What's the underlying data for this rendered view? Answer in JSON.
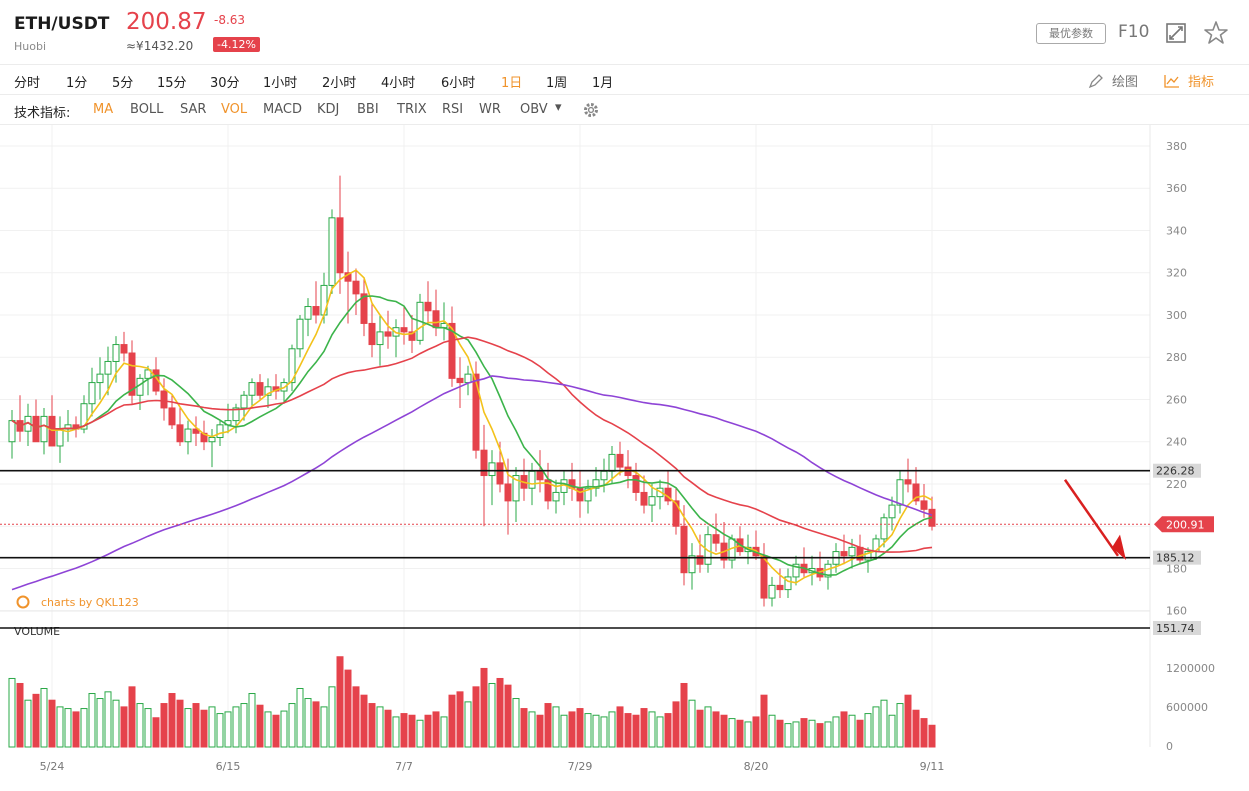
{
  "header": {
    "pair": "ETH/USDT",
    "exchange": "Huobi",
    "price": "200.87",
    "cny_price": "≈¥1432.20",
    "change": "-8.63",
    "change_pct": "-4.12%",
    "param_button": "最优参数",
    "f10": "F10"
  },
  "colors": {
    "up": "#2aa847",
    "down": "#e5424b",
    "accent": "#f0932b"
  },
  "timeframes": [
    {
      "label": "分时",
      "active": false
    },
    {
      "label": "1分",
      "active": false
    },
    {
      "label": "5分",
      "active": false
    },
    {
      "label": "15分",
      "active": false
    },
    {
      "label": "30分",
      "active": false
    },
    {
      "label": "1小时",
      "active": false
    },
    {
      "label": "2小时",
      "active": false
    },
    {
      "label": "4小时",
      "active": false
    },
    {
      "label": "6小时",
      "active": false
    },
    {
      "label": "1日",
      "active": true
    },
    {
      "label": "1周",
      "active": false
    },
    {
      "label": "1月",
      "active": false
    }
  ],
  "tools": {
    "draw": "绘图",
    "indicator": "指标"
  },
  "indicators_label": "技术指标:",
  "indicators": [
    {
      "label": "MA",
      "active": true
    },
    {
      "label": "BOLL",
      "active": false
    },
    {
      "label": "SAR",
      "active": false
    },
    {
      "label": "VOL",
      "active": true
    },
    {
      "label": "MACD",
      "active": false
    },
    {
      "label": "KDJ",
      "active": false
    },
    {
      "label": "BBI",
      "active": false
    },
    {
      "label": "TRIX",
      "active": false
    },
    {
      "label": "RSI",
      "active": false
    },
    {
      "label": "WR",
      "active": false
    },
    {
      "label": "OBV",
      "active": false
    }
  ],
  "icons": {
    "expand": "expand-icon",
    "favorite": "star-icon",
    "settings": "gear-icon",
    "draw": "pencil-icon",
    "indicator": "line-chart-icon"
  },
  "chart_data": {
    "type": "candlestick",
    "watermark": "charts by QKL123",
    "price_ticks": [
      "380",
      "360",
      "340",
      "320",
      "300",
      "280",
      "260",
      "240",
      "220",
      "200",
      "180",
      "160"
    ],
    "volume_title": "VOLUME",
    "volume_ticks": [
      "1200000",
      "600000",
      "0"
    ],
    "x_ticks": [
      {
        "label": "5/24",
        "index": 5
      },
      {
        "label": "6/15",
        "index": 27
      },
      {
        "label": "7/7",
        "index": 49
      },
      {
        "label": "7/29",
        "index": 71
      },
      {
        "label": "8/20",
        "index": 93
      },
      {
        "label": "9/11",
        "index": 115
      }
    ],
    "levels": [
      {
        "value": 226.28,
        "label": "226.28"
      },
      {
        "value": 185.12,
        "label": "185.12"
      },
      {
        "value": 151.74,
        "label": "151.74"
      }
    ],
    "last_price": {
      "value": 200.91,
      "label": "200.91"
    },
    "ohlc_v": [
      [
        240,
        255,
        232,
        250,
        820000
      ],
      [
        250,
        262,
        240,
        245,
        760000
      ],
      [
        245,
        258,
        238,
        252,
        560000
      ],
      [
        252,
        260,
        240,
        240,
        630000
      ],
      [
        240,
        256,
        234,
        252,
        700000
      ],
      [
        252,
        262,
        244,
        238,
        560000
      ],
      [
        238,
        252,
        230,
        246,
        480000
      ],
      [
        246,
        255,
        240,
        248,
        460000
      ],
      [
        248,
        252,
        242,
        246,
        420000
      ],
      [
        246,
        262,
        244,
        258,
        460000
      ],
      [
        258,
        275,
        252,
        268,
        640000
      ],
      [
        268,
        280,
        260,
        272,
        580000
      ],
      [
        272,
        285,
        262,
        278,
        660000
      ],
      [
        278,
        290,
        268,
        286,
        560000
      ],
      [
        286,
        292,
        278,
        282,
        480000
      ],
      [
        282,
        288,
        258,
        262,
        720000
      ],
      [
        262,
        272,
        255,
        270,
        520000
      ],
      [
        270,
        276,
        262,
        274,
        460000
      ],
      [
        274,
        280,
        262,
        264,
        350000
      ],
      [
        264,
        270,
        250,
        256,
        520000
      ],
      [
        256,
        262,
        246,
        248,
        640000
      ],
      [
        248,
        256,
        238,
        240,
        560000
      ],
      [
        240,
        250,
        234,
        246,
        460000
      ],
      [
        246,
        252,
        238,
        244,
        520000
      ],
      [
        244,
        250,
        236,
        240,
        440000
      ],
      [
        240,
        246,
        228,
        242,
        480000
      ],
      [
        242,
        250,
        238,
        248,
        400000
      ],
      [
        248,
        258,
        244,
        250,
        420000
      ],
      [
        250,
        258,
        244,
        256,
        480000
      ],
      [
        256,
        264,
        250,
        262,
        520000
      ],
      [
        262,
        270,
        256,
        268,
        640000
      ],
      [
        268,
        272,
        260,
        262,
        500000
      ],
      [
        262,
        270,
        256,
        266,
        420000
      ],
      [
        266,
        272,
        260,
        264,
        380000
      ],
      [
        264,
        270,
        258,
        268,
        430000
      ],
      [
        268,
        286,
        264,
        284,
        520000
      ],
      [
        284,
        300,
        280,
        298,
        700000
      ],
      [
        298,
        308,
        290,
        304,
        580000
      ],
      [
        304,
        316,
        296,
        300,
        540000
      ],
      [
        300,
        320,
        296,
        314,
        480000
      ],
      [
        314,
        350,
        310,
        346,
        720000
      ],
      [
        346,
        366,
        310,
        320,
        1080000
      ],
      [
        320,
        330,
        296,
        316,
        920000
      ],
      [
        316,
        322,
        300,
        310,
        720000
      ],
      [
        310,
        318,
        290,
        296,
        620000
      ],
      [
        296,
        306,
        280,
        286,
        520000
      ],
      [
        286,
        300,
        276,
        292,
        480000
      ],
      [
        292,
        302,
        284,
        290,
        440000
      ],
      [
        290,
        298,
        280,
        294,
        360000
      ],
      [
        294,
        304,
        286,
        292,
        400000
      ],
      [
        292,
        300,
        282,
        288,
        380000
      ],
      [
        288,
        310,
        286,
        306,
        320000
      ],
      [
        306,
        316,
        296,
        302,
        380000
      ],
      [
        302,
        312,
        290,
        294,
        420000
      ],
      [
        294,
        306,
        288,
        296,
        360000
      ],
      [
        296,
        304,
        266,
        270,
        620000
      ],
      [
        270,
        280,
        256,
        268,
        660000
      ],
      [
        268,
        276,
        262,
        272,
        540000
      ],
      [
        272,
        278,
        232,
        236,
        720000
      ],
      [
        236,
        248,
        200,
        224,
        940000
      ],
      [
        224,
        236,
        210,
        230,
        760000
      ],
      [
        230,
        240,
        216,
        220,
        820000
      ],
      [
        220,
        232,
        196,
        212,
        740000
      ],
      [
        212,
        228,
        202,
        224,
        580000
      ],
      [
        224,
        232,
        212,
        218,
        460000
      ],
      [
        218,
        230,
        210,
        226,
        420000
      ],
      [
        226,
        236,
        216,
        222,
        380000
      ],
      [
        222,
        230,
        208,
        212,
        520000
      ],
      [
        212,
        222,
        206,
        216,
        480000
      ],
      [
        216,
        226,
        210,
        222,
        380000
      ],
      [
        222,
        230,
        212,
        218,
        420000
      ],
      [
        218,
        226,
        204,
        212,
        460000
      ],
      [
        212,
        222,
        206,
        218,
        400000
      ],
      [
        218,
        228,
        214,
        222,
        380000
      ],
      [
        222,
        232,
        216,
        226,
        360000
      ],
      [
        226,
        238,
        220,
        234,
        420000
      ],
      [
        234,
        240,
        224,
        228,
        480000
      ],
      [
        228,
        236,
        218,
        224,
        400000
      ],
      [
        224,
        230,
        212,
        216,
        380000
      ],
      [
        216,
        224,
        206,
        210,
        460000
      ],
      [
        210,
        220,
        202,
        214,
        420000
      ],
      [
        214,
        222,
        208,
        218,
        360000
      ],
      [
        218,
        226,
        210,
        212,
        400000
      ],
      [
        212,
        218,
        196,
        200,
        540000
      ],
      [
        200,
        210,
        172,
        178,
        760000
      ],
      [
        178,
        192,
        170,
        186,
        560000
      ],
      [
        186,
        196,
        178,
        182,
        440000
      ],
      [
        182,
        200,
        178,
        196,
        480000
      ],
      [
        196,
        206,
        188,
        192,
        420000
      ],
      [
        192,
        202,
        180,
        184,
        380000
      ],
      [
        184,
        196,
        180,
        194,
        340000
      ],
      [
        194,
        200,
        186,
        188,
        320000
      ],
      [
        188,
        196,
        182,
        190,
        300000
      ],
      [
        190,
        198,
        184,
        186,
        360000
      ],
      [
        186,
        192,
        162,
        166,
        620000
      ],
      [
        166,
        176,
        162,
        172,
        380000
      ],
      [
        172,
        180,
        166,
        170,
        320000
      ],
      [
        170,
        180,
        166,
        176,
        280000
      ],
      [
        176,
        186,
        172,
        182,
        300000
      ],
      [
        182,
        190,
        176,
        178,
        340000
      ],
      [
        178,
        186,
        172,
        180,
        320000
      ],
      [
        180,
        188,
        174,
        176,
        280000
      ],
      [
        176,
        184,
        170,
        182,
        300000
      ],
      [
        182,
        192,
        178,
        188,
        360000
      ],
      [
        188,
        196,
        182,
        186,
        420000
      ],
      [
        186,
        194,
        180,
        190,
        380000
      ],
      [
        190,
        196,
        182,
        184,
        320000
      ],
      [
        184,
        190,
        178,
        188,
        400000
      ],
      [
        188,
        196,
        184,
        194,
        480000
      ],
      [
        194,
        206,
        190,
        204,
        560000
      ],
      [
        204,
        214,
        198,
        210,
        380000
      ],
      [
        210,
        226,
        206,
        222,
        520000
      ],
      [
        222,
        232,
        216,
        220,
        620000
      ],
      [
        220,
        228,
        210,
        212,
        440000
      ],
      [
        212,
        220,
        204,
        208,
        340000
      ],
      [
        208,
        214,
        198,
        200,
        260000
      ]
    ],
    "ma": [
      {
        "name": "MA5",
        "color": "#f3c21b"
      },
      {
        "name": "MA10",
        "color": "#3cb44b"
      },
      {
        "name": "MA30",
        "color": "#e5424b"
      },
      {
        "name": "MA60",
        "color": "#8e44d6"
      }
    ]
  }
}
